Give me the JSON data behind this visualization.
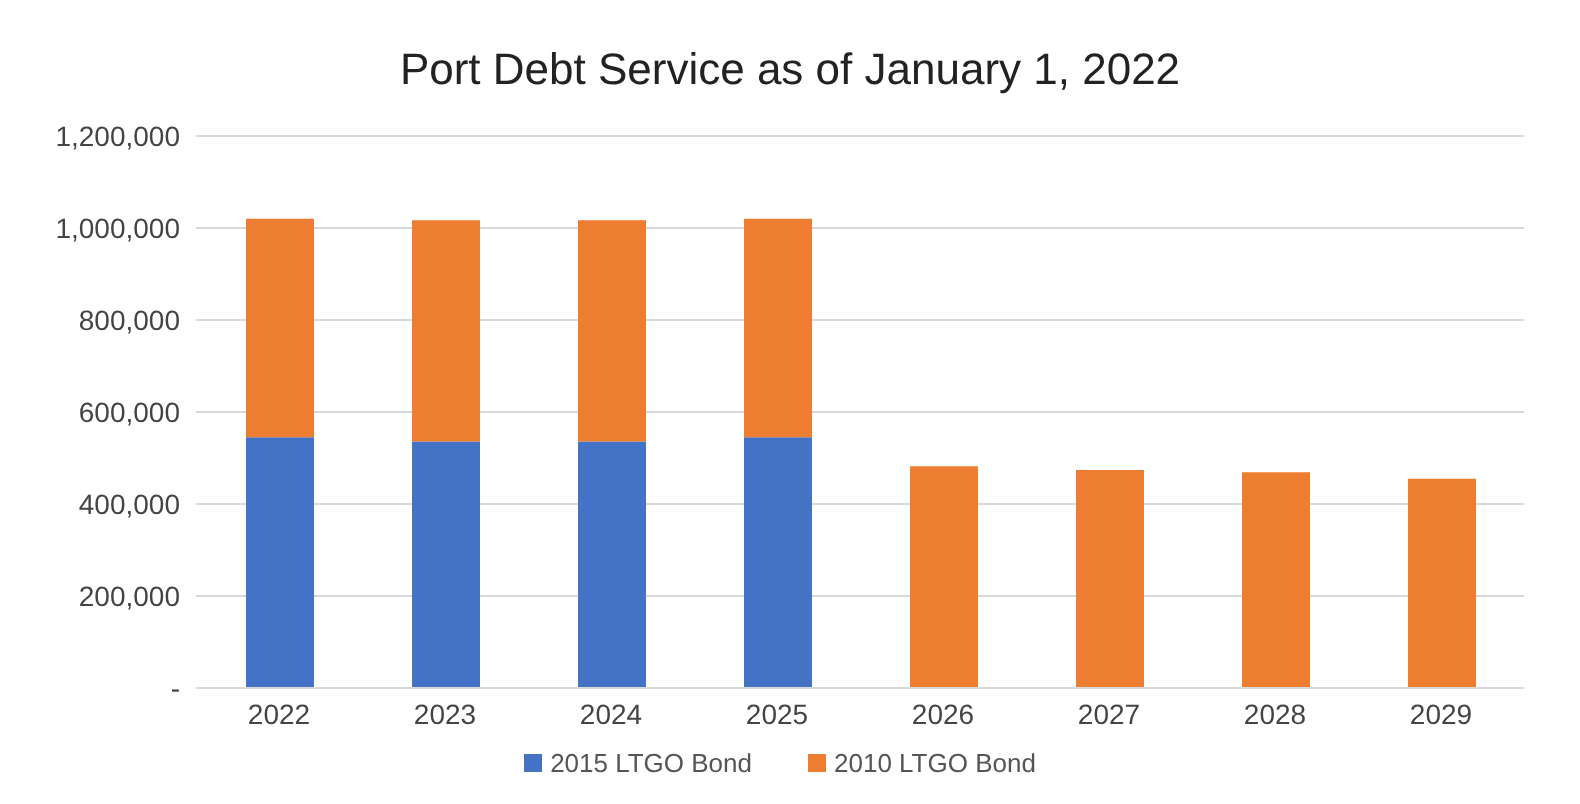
{
  "chart_data": {
    "type": "bar",
    "title": "Port Debt Service as of January 1, 2022",
    "categories": [
      "2022",
      "2023",
      "2024",
      "2025",
      "2026",
      "2027",
      "2028",
      "2029"
    ],
    "stacked": true,
    "series": [
      {
        "name": "2015 LTGO Bond",
        "color": "#4472c4",
        "values": [
          545000,
          536000,
          536000,
          545000,
          null,
          null,
          null,
          null
        ]
      },
      {
        "name": "2010 LTGO Bond",
        "color": "#ed7d31",
        "values": [
          475000,
          481000,
          481000,
          475000,
          482000,
          474000,
          469000,
          455000
        ]
      }
    ],
    "ylim": [
      0,
      1200000
    ],
    "yticks": [
      {
        "value": 0,
        "label": "-"
      },
      {
        "value": 200000,
        "label": "200,000"
      },
      {
        "value": 400000,
        "label": "400,000"
      },
      {
        "value": 600000,
        "label": "600,000"
      },
      {
        "value": 800000,
        "label": "800,000"
      },
      {
        "value": 1000000,
        "label": "1,000,000"
      },
      {
        "value": 1200000,
        "label": "1,200,000"
      }
    ],
    "grid": "y",
    "legend": "bottom"
  }
}
